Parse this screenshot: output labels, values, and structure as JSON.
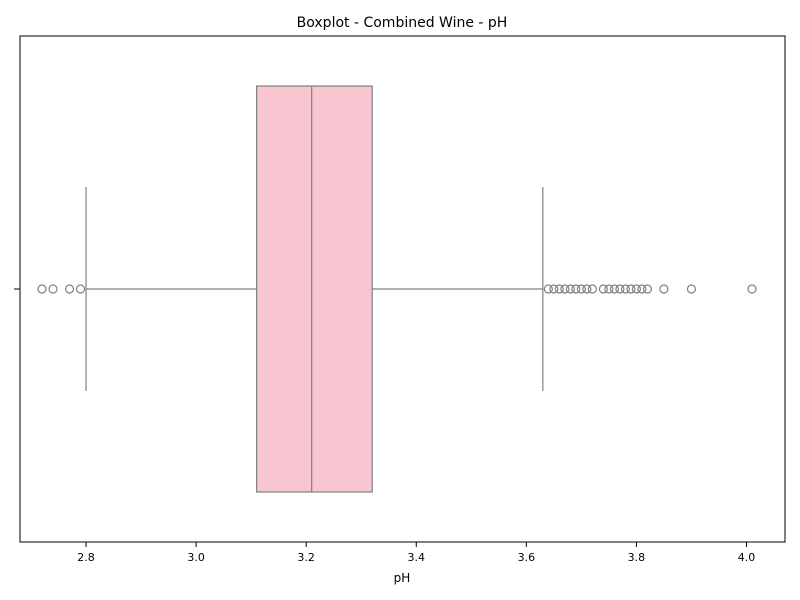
{
  "chart_data": {
    "type": "boxplot",
    "title": "Boxplot - Combined Wine - pH",
    "xlabel": "pH",
    "ylabel": "",
    "orientation": "horizontal",
    "xlim": [
      2.68,
      4.07
    ],
    "xticks": [
      2.8,
      3.0,
      3.2,
      3.4,
      3.6,
      3.8,
      4.0
    ],
    "xtick_labels": [
      "2.8",
      "3.0",
      "3.2",
      "3.4",
      "3.6",
      "3.8",
      "4.0"
    ],
    "grid": false,
    "series": [
      {
        "whisker_low": 2.8,
        "q1": 3.11,
        "median": 3.21,
        "q3": 3.32,
        "whisker_high": 3.63,
        "outliers": [
          2.72,
          2.74,
          2.77,
          2.79,
          3.64,
          3.65,
          3.66,
          3.67,
          3.68,
          3.69,
          3.7,
          3.71,
          3.72,
          3.74,
          3.75,
          3.76,
          3.77,
          3.78,
          3.79,
          3.8,
          3.81,
          3.82,
          3.85,
          3.9,
          4.01
        ]
      }
    ],
    "colors": {
      "box_fill": "#f8c6d0",
      "line": "#808080",
      "frame": "#000000"
    }
  }
}
